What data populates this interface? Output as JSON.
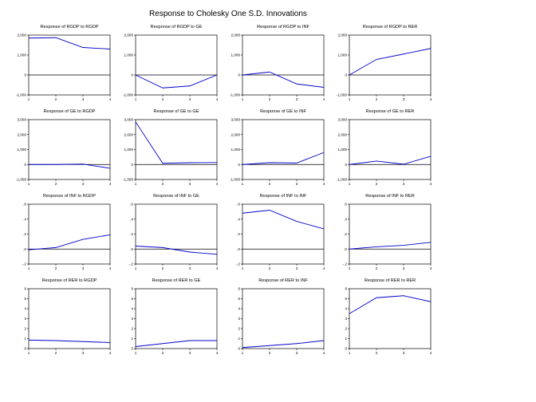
{
  "main_title": "Response to Cholesky One S.D. Innovations",
  "colors": {
    "line": "#0000cc",
    "axis": "#000000",
    "zero_line": "#000000"
  },
  "chart_data": [
    {
      "type": "line",
      "title": "Response of RGDP to RGDP",
      "x": [
        1,
        2,
        3,
        4
      ],
      "ylim": [
        -1000,
        2000
      ],
      "yticks": [
        -1000,
        0,
        1000,
        2000
      ],
      "ytick_labels": [
        "-1,000",
        "0",
        "1,000",
        "2,000"
      ],
      "xtick_labels": [
        "1",
        "2",
        "3",
        "4"
      ],
      "series": [
        {
          "values": [
            1850,
            1870,
            1380,
            1300
          ]
        }
      ]
    },
    {
      "type": "line",
      "title": "Response of RGDP to GE",
      "x": [
        1,
        2,
        3,
        4
      ],
      "ylim": [
        -1000,
        2000
      ],
      "yticks": [
        -1000,
        0,
        1000,
        2000
      ],
      "ytick_labels": [
        "-1,000",
        "0",
        "1,000",
        "2,000"
      ],
      "xtick_labels": [
        "1",
        "2",
        "3",
        "4"
      ],
      "series": [
        {
          "values": [
            0,
            -650,
            -550,
            0
          ]
        }
      ]
    },
    {
      "type": "line",
      "title": "Response of RGDP to INF",
      "x": [
        1,
        2,
        3,
        4
      ],
      "ylim": [
        -1000,
        2000
      ],
      "yticks": [
        -1000,
        0,
        1000,
        2000
      ],
      "ytick_labels": [
        "-1,000",
        "0",
        "1,000",
        "2,000"
      ],
      "xtick_labels": [
        "1",
        "2",
        "3",
        "4"
      ],
      "series": [
        {
          "values": [
            0,
            150,
            -450,
            -620
          ]
        }
      ]
    },
    {
      "type": "line",
      "title": "Response of RGDP to RER",
      "x": [
        1,
        2,
        3,
        4
      ],
      "ylim": [
        -1000,
        2000
      ],
      "yticks": [
        -1000,
        0,
        1000,
        2000
      ],
      "ytick_labels": [
        "-1,000",
        "0",
        "1,000",
        "2,000"
      ],
      "xtick_labels": [
        "1",
        "2",
        "3",
        "4"
      ],
      "series": [
        {
          "values": [
            0,
            780,
            1050,
            1330
          ]
        }
      ]
    },
    {
      "type": "line",
      "title": "Response of GE to RGDP",
      "x": [
        1,
        2,
        3,
        4
      ],
      "ylim": [
        -1000,
        3000
      ],
      "yticks": [
        -1000,
        0,
        1000,
        2000,
        3000
      ],
      "ytick_labels": [
        "-1,000",
        "0",
        "1,000",
        "2,000",
        "3,000"
      ],
      "xtick_labels": [
        "1",
        "2",
        "3",
        "4"
      ],
      "series": [
        {
          "values": [
            0,
            0,
            30,
            -250
          ]
        }
      ]
    },
    {
      "type": "line",
      "title": "Response of GE to GE",
      "x": [
        1,
        2,
        3,
        4
      ],
      "ylim": [
        -1000,
        3000
      ],
      "yticks": [
        -1000,
        0,
        1000,
        2000,
        3000
      ],
      "ytick_labels": [
        "-1,000",
        "0",
        "1,000",
        "2,000",
        "3,000"
      ],
      "xtick_labels": [
        "1",
        "2",
        "3",
        "4"
      ],
      "series": [
        {
          "values": [
            2850,
            80,
            120,
            130
          ]
        }
      ]
    },
    {
      "type": "line",
      "title": "Response of GE to INF",
      "x": [
        1,
        2,
        3,
        4
      ],
      "ylim": [
        -1000,
        3000
      ],
      "yticks": [
        -1000,
        0,
        1000,
        2000,
        3000
      ],
      "ytick_labels": [
        "-1,000",
        "0",
        "1,000",
        "2,000",
        "3,000"
      ],
      "xtick_labels": [
        "1",
        "2",
        "3",
        "4"
      ],
      "series": [
        {
          "values": [
            0,
            120,
            100,
            800
          ]
        }
      ]
    },
    {
      "type": "line",
      "title": "Response of GE to RER",
      "x": [
        1,
        2,
        3,
        4
      ],
      "ylim": [
        -1000,
        3000
      ],
      "yticks": [
        -1000,
        0,
        1000,
        2000,
        3000
      ],
      "ytick_labels": [
        "-1,000",
        "0",
        "1,000",
        "2,000",
        "3,000"
      ],
      "xtick_labels": [
        "1",
        "2",
        "3",
        "4"
      ],
      "series": [
        {
          "values": [
            0,
            230,
            20,
            550
          ]
        }
      ]
    },
    {
      "type": "line",
      "title": "Response of INF to RGDP",
      "x": [
        1,
        2,
        3,
        4
      ],
      "ylim": [
        -0.2,
        0.6
      ],
      "yticks": [
        -0.2,
        0,
        0.2,
        0.4,
        0.6
      ],
      "ytick_labels": [
        "-.2",
        ".0",
        ".2",
        ".4",
        ".6"
      ],
      "xtick_labels": [
        "1",
        "2",
        "3",
        "4"
      ],
      "series": [
        {
          "values": [
            -0.01,
            0.02,
            0.13,
            0.19
          ]
        }
      ]
    },
    {
      "type": "line",
      "title": "Response of INF to GE",
      "x": [
        1,
        2,
        3,
        4
      ],
      "ylim": [
        -0.2,
        0.6
      ],
      "yticks": [
        -0.2,
        0,
        0.2,
        0.4,
        0.6
      ],
      "ytick_labels": [
        "-.2",
        ".0",
        ".2",
        ".4",
        ".6"
      ],
      "xtick_labels": [
        "1",
        "2",
        "3",
        "4"
      ],
      "series": [
        {
          "values": [
            0.04,
            0.02,
            -0.04,
            -0.07
          ]
        }
      ]
    },
    {
      "type": "line",
      "title": "Response of INF to INF",
      "x": [
        1,
        2,
        3,
        4
      ],
      "ylim": [
        -0.2,
        0.6
      ],
      "yticks": [
        -0.2,
        0,
        0.2,
        0.4,
        0.6
      ],
      "ytick_labels": [
        "-.2",
        ".0",
        ".2",
        ".4",
        ".6"
      ],
      "xtick_labels": [
        "1",
        "2",
        "3",
        "4"
      ],
      "series": [
        {
          "values": [
            0.48,
            0.52,
            0.37,
            0.27
          ]
        }
      ]
    },
    {
      "type": "line",
      "title": "Response of INF to RER",
      "x": [
        1,
        2,
        3,
        4
      ],
      "ylim": [
        -0.2,
        0.6
      ],
      "yticks": [
        -0.2,
        0,
        0.2,
        0.4,
        0.6
      ],
      "ytick_labels": [
        "-.2",
        ".0",
        ".2",
        ".4",
        ".6"
      ],
      "xtick_labels": [
        "1",
        "2",
        "3",
        "4"
      ],
      "series": [
        {
          "values": [
            0,
            0.03,
            0.05,
            0.09
          ]
        }
      ]
    },
    {
      "type": "line",
      "title": "Response of RER to RGDP",
      "x": [
        1,
        2,
        3,
        4
      ],
      "ylim": [
        0,
        6
      ],
      "yticks": [
        0,
        1,
        2,
        3,
        4,
        5,
        6
      ],
      "ytick_labels": [
        "0",
        "1",
        "2",
        "3",
        "4",
        "5",
        "6"
      ],
      "xtick_labels": [
        "1",
        "2",
        "3",
        "4"
      ],
      "series": [
        {
          "values": [
            0.85,
            0.8,
            0.7,
            0.6
          ]
        }
      ]
    },
    {
      "type": "line",
      "title": "Response of RER to GE",
      "x": [
        1,
        2,
        3,
        4
      ],
      "ylim": [
        0,
        6
      ],
      "yticks": [
        0,
        1,
        2,
        3,
        4,
        5,
        6
      ],
      "ytick_labels": [
        "0",
        "1",
        "2",
        "3",
        "4",
        "5",
        "6"
      ],
      "xtick_labels": [
        "1",
        "2",
        "3",
        "4"
      ],
      "series": [
        {
          "values": [
            0.2,
            0.5,
            0.8,
            0.8
          ]
        }
      ]
    },
    {
      "type": "line",
      "title": "Response of RER to INF",
      "x": [
        1,
        2,
        3,
        4
      ],
      "ylim": [
        0,
        6
      ],
      "yticks": [
        0,
        1,
        2,
        3,
        4,
        5,
        6
      ],
      "ytick_labels": [
        "0",
        "1",
        "2",
        "3",
        "4",
        "5",
        "6"
      ],
      "xtick_labels": [
        "1",
        "2",
        "3",
        "4"
      ],
      "series": [
        {
          "values": [
            0.1,
            0.3,
            0.5,
            0.8
          ]
        }
      ]
    },
    {
      "type": "line",
      "title": "Response of RER to RER",
      "x": [
        1,
        2,
        3,
        4
      ],
      "ylim": [
        0,
        6
      ],
      "yticks": [
        0,
        1,
        2,
        3,
        4,
        5,
        6
      ],
      "ytick_labels": [
        "0",
        "1",
        "2",
        "3",
        "4",
        "5",
        "6"
      ],
      "xtick_labels": [
        "1",
        "2",
        "3",
        "4"
      ],
      "series": [
        {
          "values": [
            3.5,
            5.1,
            5.3,
            4.7
          ]
        }
      ]
    }
  ]
}
